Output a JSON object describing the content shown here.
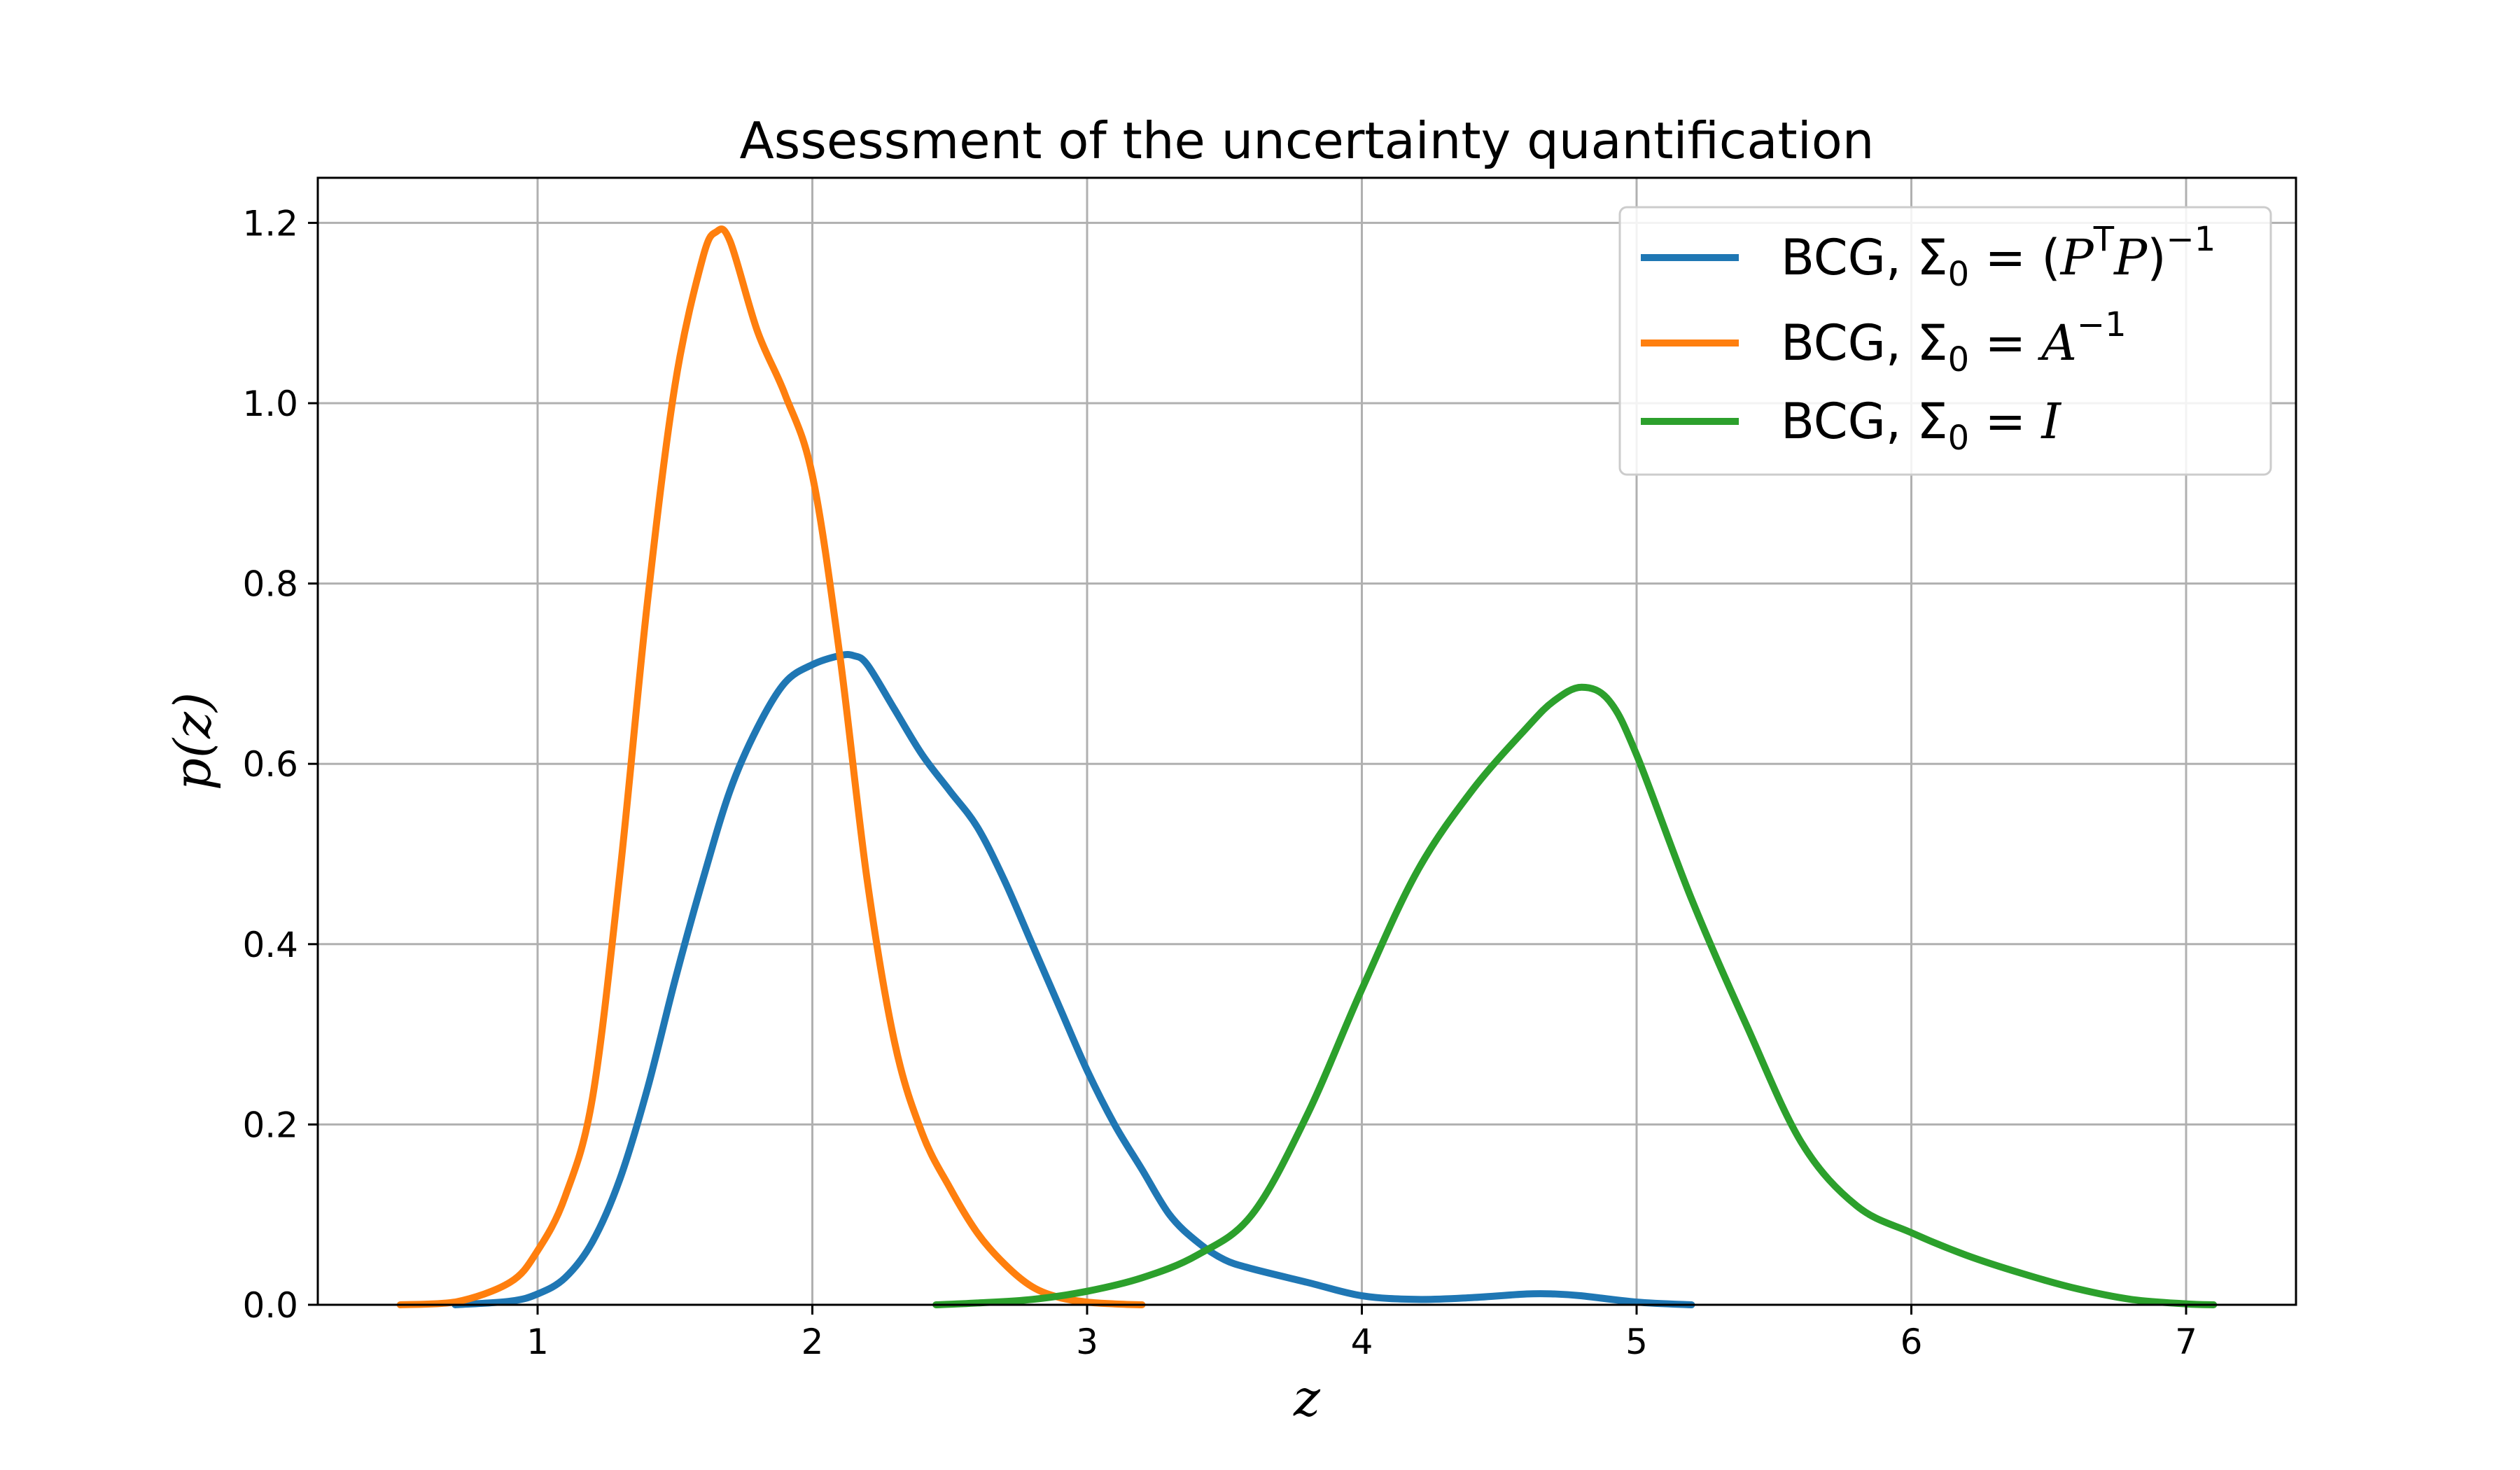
{
  "chart_data": {
    "type": "line",
    "title": "Assessment of the uncertainty quantification",
    "xlabel": "z",
    "ylabel": "p(z)",
    "xlim": [
      0.2,
      7.4
    ],
    "ylim": [
      0,
      1.25
    ],
    "xticks": [
      1,
      2,
      3,
      4,
      5,
      6,
      7
    ],
    "yticks": [
      0.0,
      0.2,
      0.4,
      0.6,
      0.8,
      1.0,
      1.2
    ],
    "xtick_labels": [
      "1",
      "2",
      "3",
      "4",
      "5",
      "6",
      "7"
    ],
    "ytick_labels": [
      "0.0",
      "0.2",
      "0.4",
      "0.6",
      "0.8",
      "1.0",
      "1.2"
    ],
    "grid": true,
    "legend_position": "top-right",
    "series": [
      {
        "name": "BCG, Σ0 = (P^T P)^-1",
        "legend": {
          "prefix": "BCG, ",
          "sigma": "Σ",
          "sub": "0",
          "eq": " = (",
          "var1": "P",
          "sup1": "T",
          "var2": "P",
          "close": ")",
          "sup2": "−1",
          "tail": ""
        },
        "color": "#1f77b4",
        "x": [
          0.7,
          0.9,
          1.0,
          1.1,
          1.2,
          1.3,
          1.4,
          1.5,
          1.6,
          1.7,
          1.8,
          1.9,
          2.0,
          2.1,
          2.15,
          2.2,
          2.3,
          2.4,
          2.5,
          2.6,
          2.7,
          2.8,
          2.9,
          3.0,
          3.1,
          3.2,
          3.3,
          3.4,
          3.5,
          3.6,
          3.8,
          4.0,
          4.2,
          4.4,
          4.6,
          4.7,
          4.8,
          5.0,
          5.2
        ],
        "y": [
          0.0,
          0.004,
          0.012,
          0.03,
          0.07,
          0.14,
          0.24,
          0.36,
          0.47,
          0.57,
          0.64,
          0.69,
          0.71,
          0.72,
          0.72,
          0.71,
          0.66,
          0.61,
          0.57,
          0.53,
          0.47,
          0.4,
          0.33,
          0.26,
          0.2,
          0.15,
          0.1,
          0.07,
          0.05,
          0.04,
          0.025,
          0.01,
          0.006,
          0.008,
          0.012,
          0.012,
          0.01,
          0.003,
          0.0
        ]
      },
      {
        "name": "BCG, Σ0 = A^-1",
        "legend": {
          "prefix": "BCG, ",
          "sigma": "Σ",
          "sub": "0",
          "eq": " = ",
          "var1": "A",
          "sup1": "−1",
          "var2": "",
          "close": "",
          "sup2": "",
          "tail": ""
        },
        "color": "#ff7f0e",
        "x": [
          0.5,
          0.7,
          0.9,
          1.0,
          1.1,
          1.2,
          1.3,
          1.4,
          1.5,
          1.6,
          1.65,
          1.7,
          1.8,
          1.9,
          2.0,
          2.1,
          2.2,
          2.3,
          2.4,
          2.5,
          2.6,
          2.7,
          2.8,
          2.9,
          3.0,
          3.1,
          3.2
        ],
        "y": [
          0.0,
          0.003,
          0.025,
          0.06,
          0.12,
          0.23,
          0.48,
          0.78,
          1.02,
          1.16,
          1.19,
          1.18,
          1.08,
          1.01,
          0.92,
          0.72,
          0.47,
          0.29,
          0.19,
          0.13,
          0.08,
          0.045,
          0.02,
          0.008,
          0.003,
          0.001,
          0.0
        ]
      },
      {
        "name": "BCG, Σ0 = I",
        "legend": {
          "prefix": "BCG, ",
          "sigma": "Σ",
          "sub": "0",
          "eq": " = ",
          "var1": "I",
          "sup1": "",
          "var2": "",
          "close": "",
          "sup2": "",
          "tail": ""
        },
        "color": "#2ca02c",
        "x": [
          2.45,
          2.6,
          2.8,
          3.0,
          3.2,
          3.4,
          3.6,
          3.8,
          4.0,
          4.2,
          4.4,
          4.6,
          4.7,
          4.8,
          4.9,
          5.0,
          5.2,
          5.4,
          5.6,
          5.8,
          6.0,
          6.2,
          6.4,
          6.6,
          6.8,
          7.0,
          7.1
        ],
        "y": [
          0.0,
          0.002,
          0.006,
          0.015,
          0.03,
          0.055,
          0.1,
          0.21,
          0.35,
          0.48,
          0.57,
          0.64,
          0.67,
          0.685,
          0.67,
          0.61,
          0.45,
          0.31,
          0.18,
          0.11,
          0.08,
          0.055,
          0.035,
          0.018,
          0.006,
          0.001,
          0.0
        ]
      }
    ]
  }
}
